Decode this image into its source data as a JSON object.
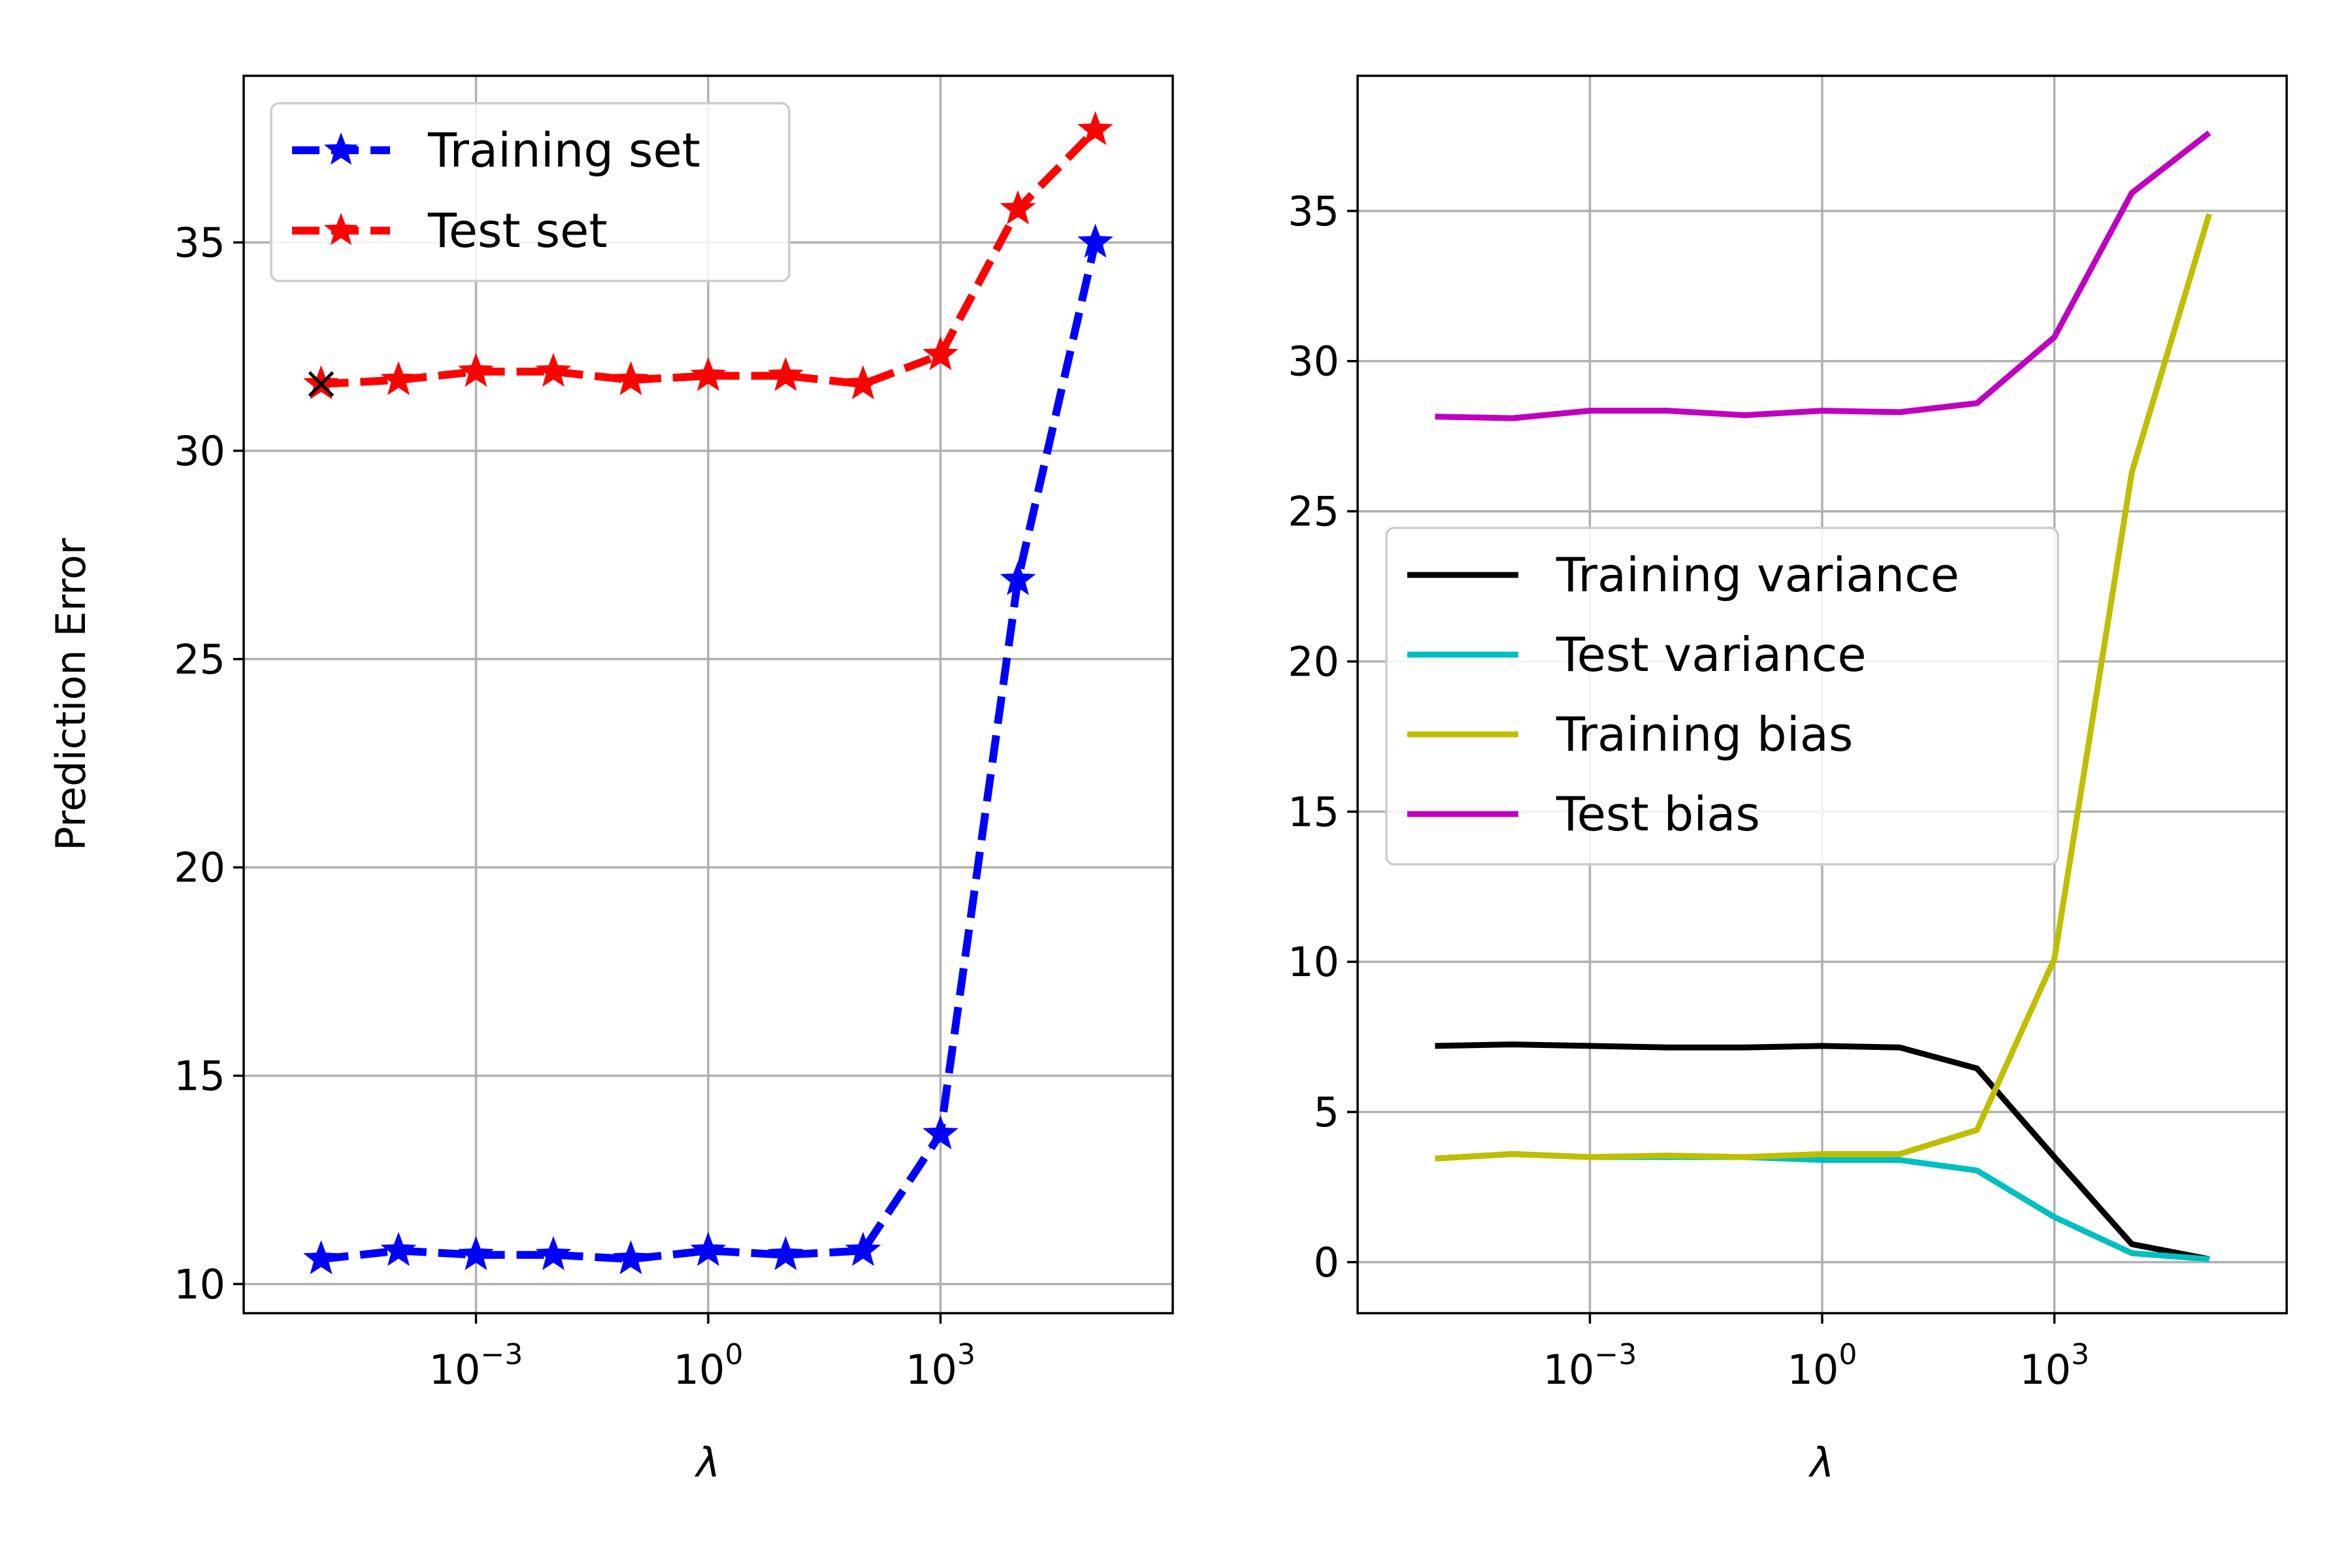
{
  "chart_data": [
    {
      "type": "line",
      "title": "",
      "xlabel": "λ",
      "ylabel": "Prediction Error",
      "xscale": "log",
      "xlim": [
        1e-06,
        1000000.0
      ],
      "ylim": [
        9.3,
        39.0
      ],
      "grid": true,
      "legend_position": "top-left",
      "x": [
        1e-05,
        0.0001,
        0.001,
        0.01,
        0.1,
        1.0,
        10.0,
        100.0,
        1000.0,
        10000.0,
        100000.0
      ],
      "x_ticks": [
        {
          "value": 0.001,
          "base": "10",
          "exp": "−3"
        },
        {
          "value": 1,
          "base": "10",
          "exp": "0"
        },
        {
          "value": 1000,
          "base": "10",
          "exp": "3"
        }
      ],
      "y_ticks": [
        10,
        15,
        20,
        25,
        30,
        35
      ],
      "series": [
        {
          "name": "Training set",
          "color": "#0000ff",
          "style": "dashed",
          "marker": "star",
          "values": [
            10.6,
            10.8,
            10.7,
            10.7,
            10.6,
            10.8,
            10.7,
            10.8,
            13.6,
            26.9,
            35.0
          ]
        },
        {
          "name": "Test set",
          "color": "#ff0000",
          "style": "dashed",
          "marker": "star",
          "values": [
            31.6,
            31.7,
            31.9,
            31.9,
            31.7,
            31.8,
            31.8,
            31.6,
            32.3,
            35.8,
            37.7
          ]
        }
      ],
      "annotation_point": {
        "x": 1e-05,
        "y": 31.6,
        "marker": "x",
        "color": "#000000"
      }
    },
    {
      "type": "line",
      "title": "",
      "xlabel": "λ",
      "ylabel": "",
      "xscale": "log",
      "xlim": [
        1e-06,
        1000000.0
      ],
      "ylim": [
        -1.7,
        39.5
      ],
      "grid": true,
      "legend_position": "center-left",
      "x": [
        1e-05,
        0.0001,
        0.001,
        0.01,
        0.1,
        1.0,
        10.0,
        100.0,
        1000.0,
        10000.0,
        100000.0
      ],
      "x_ticks": [
        {
          "value": 0.001,
          "base": "10",
          "exp": "−3"
        },
        {
          "value": 1,
          "base": "10",
          "exp": "0"
        },
        {
          "value": 1000,
          "base": "10",
          "exp": "3"
        }
      ],
      "y_ticks": [
        0,
        5,
        10,
        15,
        20,
        25,
        30,
        35
      ],
      "series": [
        {
          "name": "Training variance",
          "color": "#000000",
          "style": "solid",
          "values": [
            7.2,
            7.25,
            7.2,
            7.15,
            7.15,
            7.2,
            7.15,
            6.45,
            3.5,
            0.6,
            0.1
          ]
        },
        {
          "name": "Test variance",
          "color": "#00bfbf",
          "style": "solid",
          "values": [
            3.45,
            3.6,
            3.5,
            3.5,
            3.5,
            3.4,
            3.4,
            3.05,
            1.5,
            0.3,
            0.1
          ]
        },
        {
          "name": "Training bias",
          "color": "#bfbf00",
          "style": "solid",
          "values": [
            3.45,
            3.6,
            3.5,
            3.55,
            3.5,
            3.6,
            3.6,
            4.4,
            10.1,
            26.3,
            34.9
          ]
        },
        {
          "name": "Test bias",
          "color": "#bf00bf",
          "style": "solid",
          "values": [
            28.15,
            28.1,
            28.35,
            28.35,
            28.2,
            28.35,
            28.3,
            28.6,
            30.8,
            35.6,
            37.6
          ]
        }
      ]
    }
  ]
}
